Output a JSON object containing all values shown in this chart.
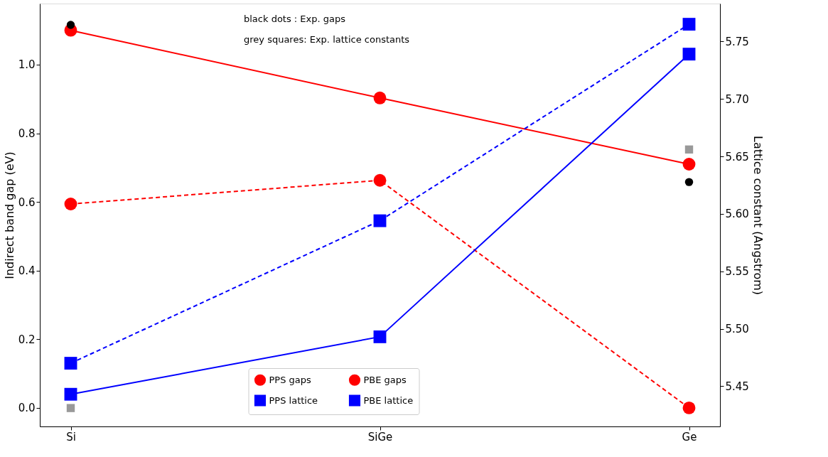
{
  "chart_data": {
    "type": "line",
    "xlabel": null,
    "ylabel": "Indirect band gap (eV)",
    "y2label": "Lattice constant (Angstrom)",
    "categories": [
      "Si",
      "SiGe",
      "Ge"
    ],
    "ylim": [
      -0.054,
      1.178
    ],
    "yticks": [
      {
        "value": 0,
        "label": "0.0"
      },
      {
        "value": 0.2,
        "label": "0.2"
      },
      {
        "value": 0.4,
        "label": "0.4"
      },
      {
        "value": 0.6,
        "label": "0.6"
      },
      {
        "value": 0.8,
        "label": "0.8"
      },
      {
        "value": 1,
        "label": "1.0"
      }
    ],
    "y2lim": [
      5.415,
      5.783
    ],
    "y2ticks": [
      5.45,
      {
        "value": 5.5,
        "label": "5.50"
      },
      5.55,
      {
        "value": 5.6,
        "label": "5.60"
      },
      5.65,
      {
        "value": 5.7,
        "label": "5.70"
      },
      5.75
    ],
    "series": [
      {
        "name": "PPS gaps",
        "color": "#ff0000",
        "values": [
          1.1,
          0.903,
          0.71
        ],
        "marker": "circle",
        "line_style": "solid"
      },
      {
        "name": "PPS lattice",
        "color": "#0000ff",
        "values": [
          5.443,
          5.493,
          5.739
        ],
        "marker": "square",
        "line_style": "solid",
        "axis": "y2"
      },
      {
        "name": "PBE gaps",
        "color": "#ff0000",
        "values": [
          0.594,
          0.663,
          0.0
        ],
        "marker": "circle",
        "line_style": "dashed"
      },
      {
        "name": "PBE lattice",
        "color": "#0000ff",
        "values": [
          5.47,
          5.594,
          5.765
        ],
        "marker": "square",
        "line_style": "dashed",
        "axis": "y2"
      },
      {
        "type": "scatter",
        "color": "#000000",
        "values": [
          1.116,
          null,
          0.658
        ],
        "marker": "circle"
      },
      {
        "type": "scatter",
        "color": "#999999",
        "values": [
          5.431,
          null,
          5.656
        ],
        "marker": "square",
        "axis": "y2"
      }
    ],
    "annotations": [
      "black dots    : Exp. gaps",
      "grey squares: Exp. lattice constants"
    ],
    "legend": "bottom",
    "grid": false
  }
}
